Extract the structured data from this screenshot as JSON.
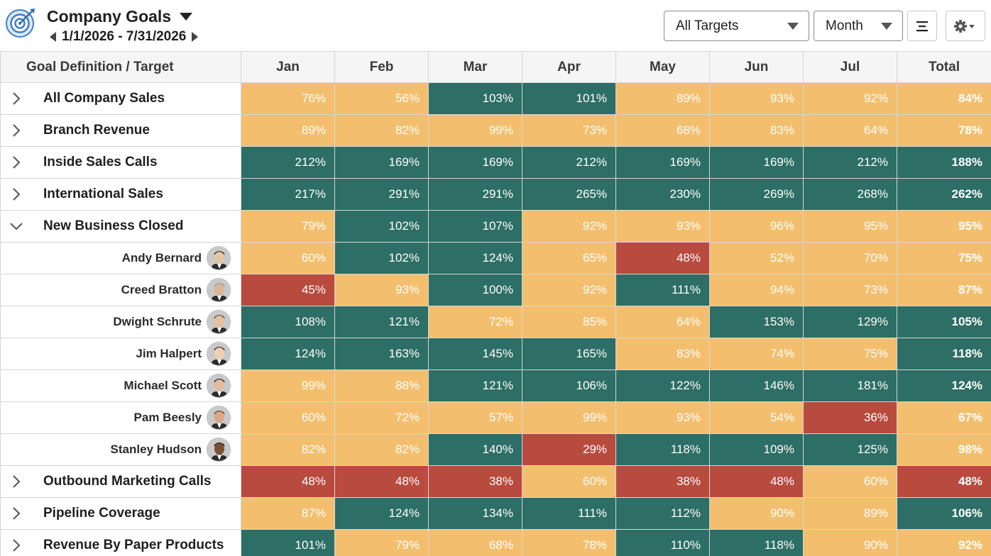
{
  "app": {
    "title": "Company Goals",
    "date_range": "1/1/2026 - 7/31/2026"
  },
  "toolbar": {
    "targets_select": "All Targets",
    "period_select": "Month",
    "align_icon": "align-center-icon",
    "settings_icon": "gear-icon"
  },
  "colors": {
    "good": "#2d6e66",
    "mid": "#f3bf6e",
    "bad": "#b94a3e"
  },
  "table": {
    "first_header": "Goal Definition / Target",
    "columns": [
      "Jan",
      "Feb",
      "Mar",
      "Apr",
      "May",
      "Jun",
      "Jul",
      "Total"
    ],
    "rows": [
      {
        "type": "group",
        "expanded": false,
        "label": "All Company Sales",
        "cells": [
          {
            "v": "76%",
            "s": "mid"
          },
          {
            "v": "56%",
            "s": "mid"
          },
          {
            "v": "103%",
            "s": "good"
          },
          {
            "v": "101%",
            "s": "good"
          },
          {
            "v": "89%",
            "s": "mid"
          },
          {
            "v": "93%",
            "s": "mid"
          },
          {
            "v": "92%",
            "s": "mid"
          },
          {
            "v": "84%",
            "s": "mid"
          }
        ]
      },
      {
        "type": "group",
        "expanded": false,
        "label": "Branch Revenue",
        "cells": [
          {
            "v": "89%",
            "s": "mid"
          },
          {
            "v": "82%",
            "s": "mid"
          },
          {
            "v": "99%",
            "s": "mid"
          },
          {
            "v": "73%",
            "s": "mid"
          },
          {
            "v": "68%",
            "s": "mid"
          },
          {
            "v": "83%",
            "s": "mid"
          },
          {
            "v": "64%",
            "s": "mid"
          },
          {
            "v": "78%",
            "s": "mid"
          }
        ]
      },
      {
        "type": "group",
        "expanded": false,
        "label": "Inside Sales Calls",
        "cells": [
          {
            "v": "212%",
            "s": "good"
          },
          {
            "v": "169%",
            "s": "good"
          },
          {
            "v": "169%",
            "s": "good"
          },
          {
            "v": "212%",
            "s": "good"
          },
          {
            "v": "169%",
            "s": "good"
          },
          {
            "v": "169%",
            "s": "good"
          },
          {
            "v": "212%",
            "s": "good"
          },
          {
            "v": "188%",
            "s": "good"
          }
        ]
      },
      {
        "type": "group",
        "expanded": false,
        "label": "International Sales",
        "cells": [
          {
            "v": "217%",
            "s": "good"
          },
          {
            "v": "291%",
            "s": "good"
          },
          {
            "v": "291%",
            "s": "good"
          },
          {
            "v": "265%",
            "s": "good"
          },
          {
            "v": "230%",
            "s": "good"
          },
          {
            "v": "269%",
            "s": "good"
          },
          {
            "v": "268%",
            "s": "good"
          },
          {
            "v": "262%",
            "s": "good"
          }
        ]
      },
      {
        "type": "group",
        "expanded": true,
        "label": "New Business Closed",
        "cells": [
          {
            "v": "79%",
            "s": "mid"
          },
          {
            "v": "102%",
            "s": "good"
          },
          {
            "v": "107%",
            "s": "good"
          },
          {
            "v": "92%",
            "s": "mid"
          },
          {
            "v": "93%",
            "s": "mid"
          },
          {
            "v": "96%",
            "s": "mid"
          },
          {
            "v": "95%",
            "s": "mid"
          },
          {
            "v": "95%",
            "s": "mid"
          }
        ]
      },
      {
        "type": "person",
        "label": "Andy Bernard",
        "avatar": "avatar-icon",
        "cells": [
          {
            "v": "60%",
            "s": "mid"
          },
          {
            "v": "102%",
            "s": "good"
          },
          {
            "v": "124%",
            "s": "good"
          },
          {
            "v": "65%",
            "s": "mid"
          },
          {
            "v": "48%",
            "s": "bad"
          },
          {
            "v": "52%",
            "s": "mid"
          },
          {
            "v": "70%",
            "s": "mid"
          },
          {
            "v": "75%",
            "s": "mid"
          }
        ]
      },
      {
        "type": "person",
        "label": "Creed Bratton",
        "avatar": "avatar-icon",
        "cells": [
          {
            "v": "45%",
            "s": "bad"
          },
          {
            "v": "93%",
            "s": "mid"
          },
          {
            "v": "100%",
            "s": "good"
          },
          {
            "v": "92%",
            "s": "mid"
          },
          {
            "v": "111%",
            "s": "good"
          },
          {
            "v": "94%",
            "s": "mid"
          },
          {
            "v": "73%",
            "s": "mid"
          },
          {
            "v": "87%",
            "s": "mid"
          }
        ]
      },
      {
        "type": "person",
        "label": "Dwight Schrute",
        "avatar": "avatar-icon",
        "cells": [
          {
            "v": "108%",
            "s": "good"
          },
          {
            "v": "121%",
            "s": "good"
          },
          {
            "v": "72%",
            "s": "mid"
          },
          {
            "v": "85%",
            "s": "mid"
          },
          {
            "v": "64%",
            "s": "mid"
          },
          {
            "v": "153%",
            "s": "good"
          },
          {
            "v": "129%",
            "s": "good"
          },
          {
            "v": "105%",
            "s": "good"
          }
        ]
      },
      {
        "type": "person",
        "label": "Jim Halpert",
        "avatar": "avatar-icon",
        "cells": [
          {
            "v": "124%",
            "s": "good"
          },
          {
            "v": "163%",
            "s": "good"
          },
          {
            "v": "145%",
            "s": "good"
          },
          {
            "v": "165%",
            "s": "good"
          },
          {
            "v": "83%",
            "s": "mid"
          },
          {
            "v": "74%",
            "s": "mid"
          },
          {
            "v": "75%",
            "s": "mid"
          },
          {
            "v": "118%",
            "s": "good"
          }
        ]
      },
      {
        "type": "person",
        "label": "Michael Scott",
        "avatar": "avatar-icon",
        "cells": [
          {
            "v": "99%",
            "s": "mid"
          },
          {
            "v": "88%",
            "s": "mid"
          },
          {
            "v": "121%",
            "s": "good"
          },
          {
            "v": "106%",
            "s": "good"
          },
          {
            "v": "122%",
            "s": "good"
          },
          {
            "v": "146%",
            "s": "good"
          },
          {
            "v": "181%",
            "s": "good"
          },
          {
            "v": "124%",
            "s": "good"
          }
        ]
      },
      {
        "type": "person",
        "label": "Pam Beesly",
        "avatar": "avatar-icon",
        "cells": [
          {
            "v": "60%",
            "s": "mid"
          },
          {
            "v": "72%",
            "s": "mid"
          },
          {
            "v": "57%",
            "s": "mid"
          },
          {
            "v": "99%",
            "s": "mid"
          },
          {
            "v": "93%",
            "s": "mid"
          },
          {
            "v": "54%",
            "s": "mid"
          },
          {
            "v": "36%",
            "s": "bad"
          },
          {
            "v": "67%",
            "s": "mid"
          }
        ]
      },
      {
        "type": "person",
        "label": "Stanley Hudson",
        "avatar": "avatar-icon",
        "cells": [
          {
            "v": "82%",
            "s": "mid"
          },
          {
            "v": "82%",
            "s": "mid"
          },
          {
            "v": "140%",
            "s": "good"
          },
          {
            "v": "29%",
            "s": "bad"
          },
          {
            "v": "118%",
            "s": "good"
          },
          {
            "v": "109%",
            "s": "good"
          },
          {
            "v": "125%",
            "s": "good"
          },
          {
            "v": "98%",
            "s": "mid"
          }
        ]
      },
      {
        "type": "group",
        "expanded": false,
        "label": "Outbound Marketing Calls",
        "cells": [
          {
            "v": "48%",
            "s": "bad"
          },
          {
            "v": "48%",
            "s": "bad"
          },
          {
            "v": "38%",
            "s": "bad"
          },
          {
            "v": "60%",
            "s": "mid"
          },
          {
            "v": "38%",
            "s": "bad"
          },
          {
            "v": "48%",
            "s": "bad"
          },
          {
            "v": "60%",
            "s": "mid"
          },
          {
            "v": "48%",
            "s": "bad"
          }
        ]
      },
      {
        "type": "group",
        "expanded": false,
        "label": "Pipeline Coverage",
        "cells": [
          {
            "v": "87%",
            "s": "mid"
          },
          {
            "v": "124%",
            "s": "good"
          },
          {
            "v": "134%",
            "s": "good"
          },
          {
            "v": "111%",
            "s": "good"
          },
          {
            "v": "112%",
            "s": "good"
          },
          {
            "v": "90%",
            "s": "mid"
          },
          {
            "v": "89%",
            "s": "mid"
          },
          {
            "v": "106%",
            "s": "good"
          }
        ]
      },
      {
        "type": "group",
        "expanded": false,
        "label": "Revenue By Paper Products",
        "cells": [
          {
            "v": "101%",
            "s": "good"
          },
          {
            "v": "79%",
            "s": "mid"
          },
          {
            "v": "68%",
            "s": "mid"
          },
          {
            "v": "78%",
            "s": "mid"
          },
          {
            "v": "110%",
            "s": "good"
          },
          {
            "v": "118%",
            "s": "good"
          },
          {
            "v": "90%",
            "s": "mid"
          },
          {
            "v": "92%",
            "s": "mid"
          }
        ]
      }
    ]
  }
}
